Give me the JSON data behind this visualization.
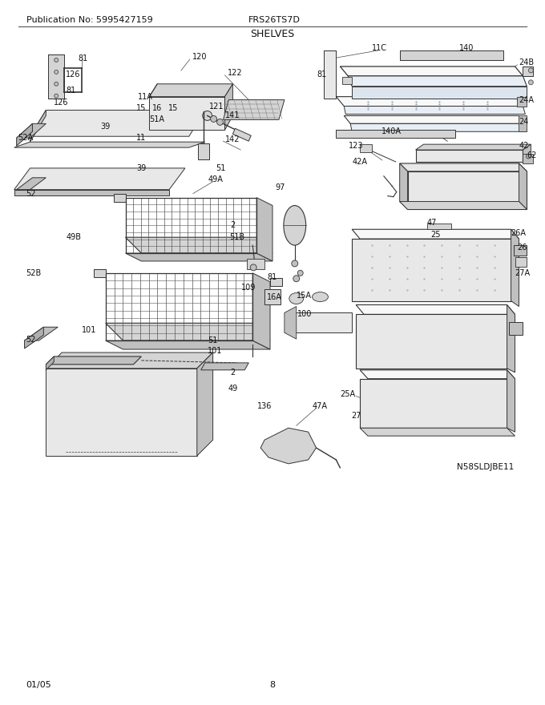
{
  "pub_no": "Publication No: 5995427159",
  "model": "FRS26TS7D",
  "section": "SHELVES",
  "date": "01/05",
  "page": "8",
  "watermark": "N58SLDJBE11",
  "bg_color": "#ffffff",
  "lc": "#333333",
  "header_fontsize": 8.5,
  "title_fontsize": 9.5,
  "footer_fontsize": 8.5,
  "label_fontsize": 7.0
}
